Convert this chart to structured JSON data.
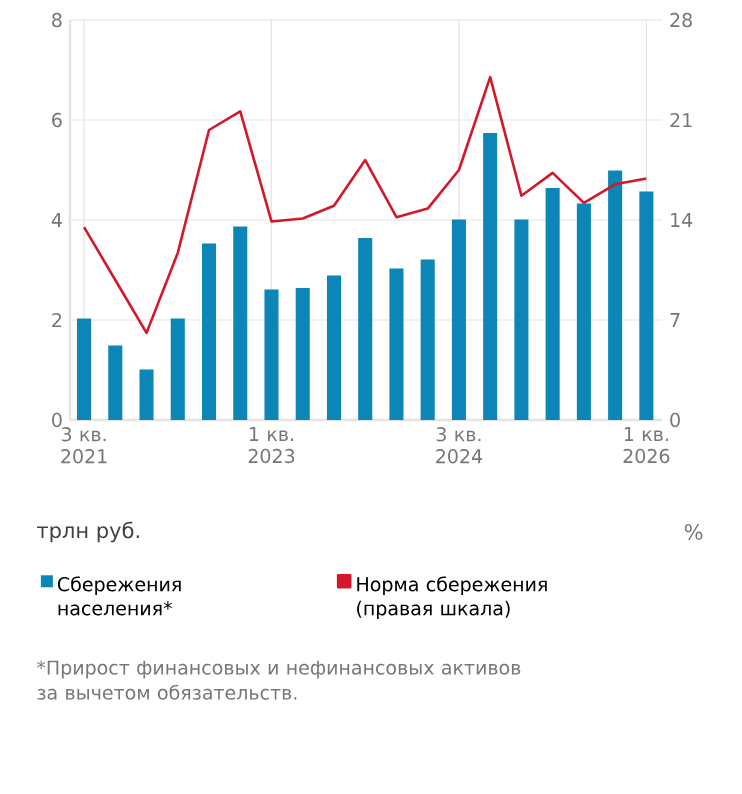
{
  "chart_data": {
    "type": "bar",
    "ylabel": "трлн руб.",
    "y2label": "%",
    "categories": [
      "3 кв. 2021",
      null,
      null,
      null,
      null,
      null,
      "1 кв. 2023",
      null,
      null,
      null,
      null,
      null,
      "3 кв. 2024",
      null,
      null,
      null,
      null,
      null,
      "1 кв. 2026"
    ],
    "series": [
      {
        "name": "Сбережения населения*",
        "color": "#0b86b6",
        "values": [
          2.03,
          1.49,
          1.01,
          2.03,
          3.53,
          3.87,
          2.61,
          2.64,
          2.89,
          3.64,
          3.03,
          3.21,
          4.01,
          5.74,
          4.01,
          4.64,
          4.33,
          4.99,
          4.57
        ]
      },
      {
        "name": "Норма сбережения (правая шкала)",
        "type": "line",
        "axis": "y2",
        "color": "#d3182b",
        "values": [
          13.5,
          9.8,
          6.1,
          11.7,
          20.3,
          21.6,
          13.9,
          14.1,
          15.0,
          18.2,
          14.2,
          14.8,
          17.5,
          24.0,
          15.7,
          17.3,
          15.2,
          16.5,
          16.9
        ]
      }
    ],
    "ylim": [
      0,
      8
    ],
    "yticks": [
      0,
      2,
      4,
      6,
      8
    ],
    "y2lim": [
      0,
      28
    ],
    "y2ticks": [
      0,
      7,
      14,
      21,
      28
    ],
    "grid": true,
    "legend": "bottom",
    "marker": "none",
    "line_style": "solid",
    "annotations": [
      "*Прирост финансовых и нефинансовых активов за вычетом обязательств."
    ]
  }
}
